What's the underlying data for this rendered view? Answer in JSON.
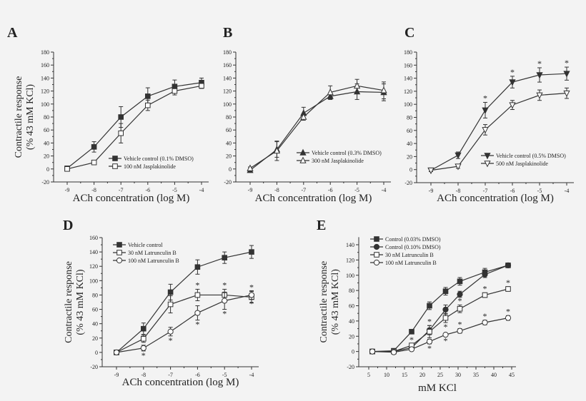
{
  "chart_data": [
    {
      "panel": "A",
      "type": "line",
      "xlabel": "ACh concentration (log M)",
      "ylabel": [
        "Contractile response",
        "(% 43 mM KCl)"
      ],
      "x": [
        -9,
        -8,
        -7,
        -6,
        -5,
        -4
      ],
      "xticks": [
        -9,
        -8,
        -7,
        -6,
        -5,
        -4
      ],
      "ylim": [
        -20,
        180
      ],
      "yticks": [
        -20,
        0,
        20,
        40,
        60,
        80,
        100,
        120,
        140,
        160,
        180
      ],
      "series": [
        {
          "name": "Vehicle control (0.1% DMSO)",
          "marker": "square-filled",
          "values": [
            1,
            34,
            80,
            112,
            127,
            133
          ],
          "err": [
            2,
            8,
            16,
            13,
            10,
            7
          ],
          "stars": []
        },
        {
          "name": "100 nM Jasplakinolide",
          "marker": "square-open",
          "values": [
            0,
            10,
            55,
            98,
            120,
            128
          ],
          "err": [
            1,
            2,
            15,
            8,
            6,
            4
          ],
          "stars": []
        }
      ]
    },
    {
      "panel": "B",
      "type": "line",
      "xlabel": "ACh concentration (log M)",
      "ylabel": [],
      "x": [
        -9,
        -8,
        -7,
        -6,
        -5,
        -4
      ],
      "xticks": [
        -9,
        -8,
        -7,
        -6,
        -5,
        -4
      ],
      "ylim": [
        -20,
        180
      ],
      "yticks": [
        -20,
        0,
        20,
        40,
        60,
        80,
        100,
        120,
        140,
        160,
        180
      ],
      "series": [
        {
          "name": "Vehicle control (0.3% DMSO)",
          "marker": "triangle-up-filled",
          "values": [
            -2,
            30,
            86,
            112,
            119,
            118
          ],
          "err": [
            2,
            12,
            9,
            5,
            12,
            13
          ],
          "stars": []
        },
        {
          "name": "300 nM Jasplakinolide",
          "marker": "triangle-up-open",
          "values": [
            1,
            28,
            80,
            118,
            128,
            121
          ],
          "err": [
            2,
            15,
            5,
            10,
            10,
            13
          ],
          "stars": []
        }
      ]
    },
    {
      "panel": "C",
      "type": "line",
      "xlabel": "ACh concentration (log M)",
      "ylabel": [],
      "x": [
        -9,
        -8,
        -7,
        -6,
        -5,
        -4
      ],
      "xticks": [
        -9,
        -8,
        -7,
        -6,
        -5,
        -4
      ],
      "ylim": [
        -20,
        180
      ],
      "yticks": [
        -20,
        0,
        20,
        40,
        60,
        80,
        100,
        120,
        140,
        160,
        180
      ],
      "series": [
        {
          "name": "Vehicle control (0.5% DMSO)",
          "marker": "triangle-down-filled",
          "values": [
            -1,
            22,
            91,
            134,
            145,
            147
          ],
          "err": [
            2,
            5,
            12,
            9,
            11,
            10
          ],
          "stars": [
            {
              "i": 2,
              "pos": "above"
            },
            {
              "i": 3,
              "pos": "above"
            },
            {
              "i": 4,
              "pos": "above"
            },
            {
              "i": 5,
              "pos": "above"
            }
          ]
        },
        {
          "name": "500 nM Jasplakinolide",
          "marker": "triangle-down-open",
          "values": [
            -1,
            5,
            61,
            99,
            114,
            117
          ],
          "err": [
            2,
            3,
            8,
            7,
            8,
            8
          ],
          "stars": []
        }
      ]
    },
    {
      "panel": "D",
      "type": "line",
      "xlabel": "ACh concentration (log M)",
      "ylabel": [
        "Contractile response",
        "(% 43 mM KCl)"
      ],
      "x": [
        -9,
        -8,
        -7,
        -6,
        -5,
        -4
      ],
      "xticks": [
        -9,
        -8,
        -7,
        -6,
        -5,
        -4
      ],
      "ylim": [
        -20,
        160
      ],
      "yticks": [
        -20,
        0,
        20,
        40,
        60,
        80,
        100,
        120,
        140,
        160
      ],
      "series": [
        {
          "name": "Vehicle control",
          "marker": "square-filled",
          "values": [
            0,
            33,
            84,
            119,
            132,
            140
          ],
          "err": [
            1,
            8,
            11,
            10,
            8,
            9
          ],
          "stars": []
        },
        {
          "name": "30 nM Latrunculin B",
          "marker": "square-open",
          "values": [
            0,
            19,
            67,
            80,
            80,
            77
          ],
          "err": [
            1,
            5,
            12,
            8,
            8,
            8
          ],
          "stars": [
            {
              "i": 3,
              "pos": "above"
            },
            {
              "i": 4,
              "pos": "above"
            },
            {
              "i": 5,
              "pos": "above"
            }
          ]
        },
        {
          "name": "100 nM Latrunculin B",
          "marker": "circle-open",
          "values": [
            0,
            6,
            29,
            55,
            72,
            80
          ],
          "err": [
            1,
            4,
            6,
            10,
            12,
            6
          ],
          "stars": [
            {
              "i": 1,
              "pos": "below"
            },
            {
              "i": 2,
              "pos": "below"
            },
            {
              "i": 3,
              "pos": "below"
            },
            {
              "i": 4,
              "pos": "below"
            },
            {
              "i": 5,
              "pos": "below"
            }
          ]
        }
      ]
    },
    {
      "panel": "E",
      "type": "line",
      "xlabel": "mM KCl",
      "ylabel": [
        "Contractile response",
        "(% 43 mM KCl)"
      ],
      "x": [
        6,
        12,
        17,
        22,
        26.5,
        30.5,
        37.5,
        44
      ],
      "xticks": [
        5,
        10,
        15,
        20,
        25,
        30,
        35,
        40,
        45
      ],
      "xlim": [
        5,
        45
      ],
      "ylim": [
        -20,
        150
      ],
      "yticks": [
        -20,
        0,
        20,
        40,
        60,
        80,
        100,
        120,
        140
      ],
      "series": [
        {
          "name": "Control (0.03% DMSO)",
          "marker": "square-filled",
          "values": [
            0,
            1,
            26,
            60,
            79,
            92,
            104,
            113
          ],
          "err": [
            1,
            1,
            2,
            5,
            5,
            5,
            5,
            3
          ],
          "stars": []
        },
        {
          "name": "Control (0.10% DMSO)",
          "marker": "circle-filled",
          "values": [
            0,
            0,
            5,
            28,
            55,
            75,
            101,
            113
          ],
          "err": [
            1,
            1,
            2,
            6,
            6,
            4,
            4,
            3
          ],
          "stars": []
        },
        {
          "name": "30 nM Latrunculin B",
          "marker": "square-open",
          "values": [
            0,
            0,
            8,
            26,
            44,
            56,
            74,
            82
          ],
          "err": [
            1,
            1,
            2,
            8,
            6,
            5,
            3,
            3
          ],
          "stars": [
            {
              "i": 2,
              "pos": "above"
            },
            {
              "i": 3,
              "pos": "above"
            },
            {
              "i": 4,
              "pos": "below"
            },
            {
              "i": 5,
              "pos": "above"
            },
            {
              "i": 6,
              "pos": "above"
            },
            {
              "i": 7,
              "pos": "above"
            }
          ]
        },
        {
          "name": "100 nM Latrunculin B",
          "marker": "circle-open",
          "values": [
            0,
            -1,
            3,
            13,
            22,
            27,
            38,
            44
          ],
          "err": [
            1,
            1,
            1,
            3,
            2,
            3,
            3,
            3
          ],
          "stars": [
            {
              "i": 3,
              "pos": "below"
            },
            {
              "i": 4,
              "pos": "below"
            },
            {
              "i": 5,
              "pos": "above"
            },
            {
              "i": 6,
              "pos": "above"
            },
            {
              "i": 7,
              "pos": "above"
            }
          ]
        }
      ]
    }
  ],
  "star_symbol": "*",
  "colors": {
    "line": "#333333",
    "background": "#f3f3f3"
  }
}
